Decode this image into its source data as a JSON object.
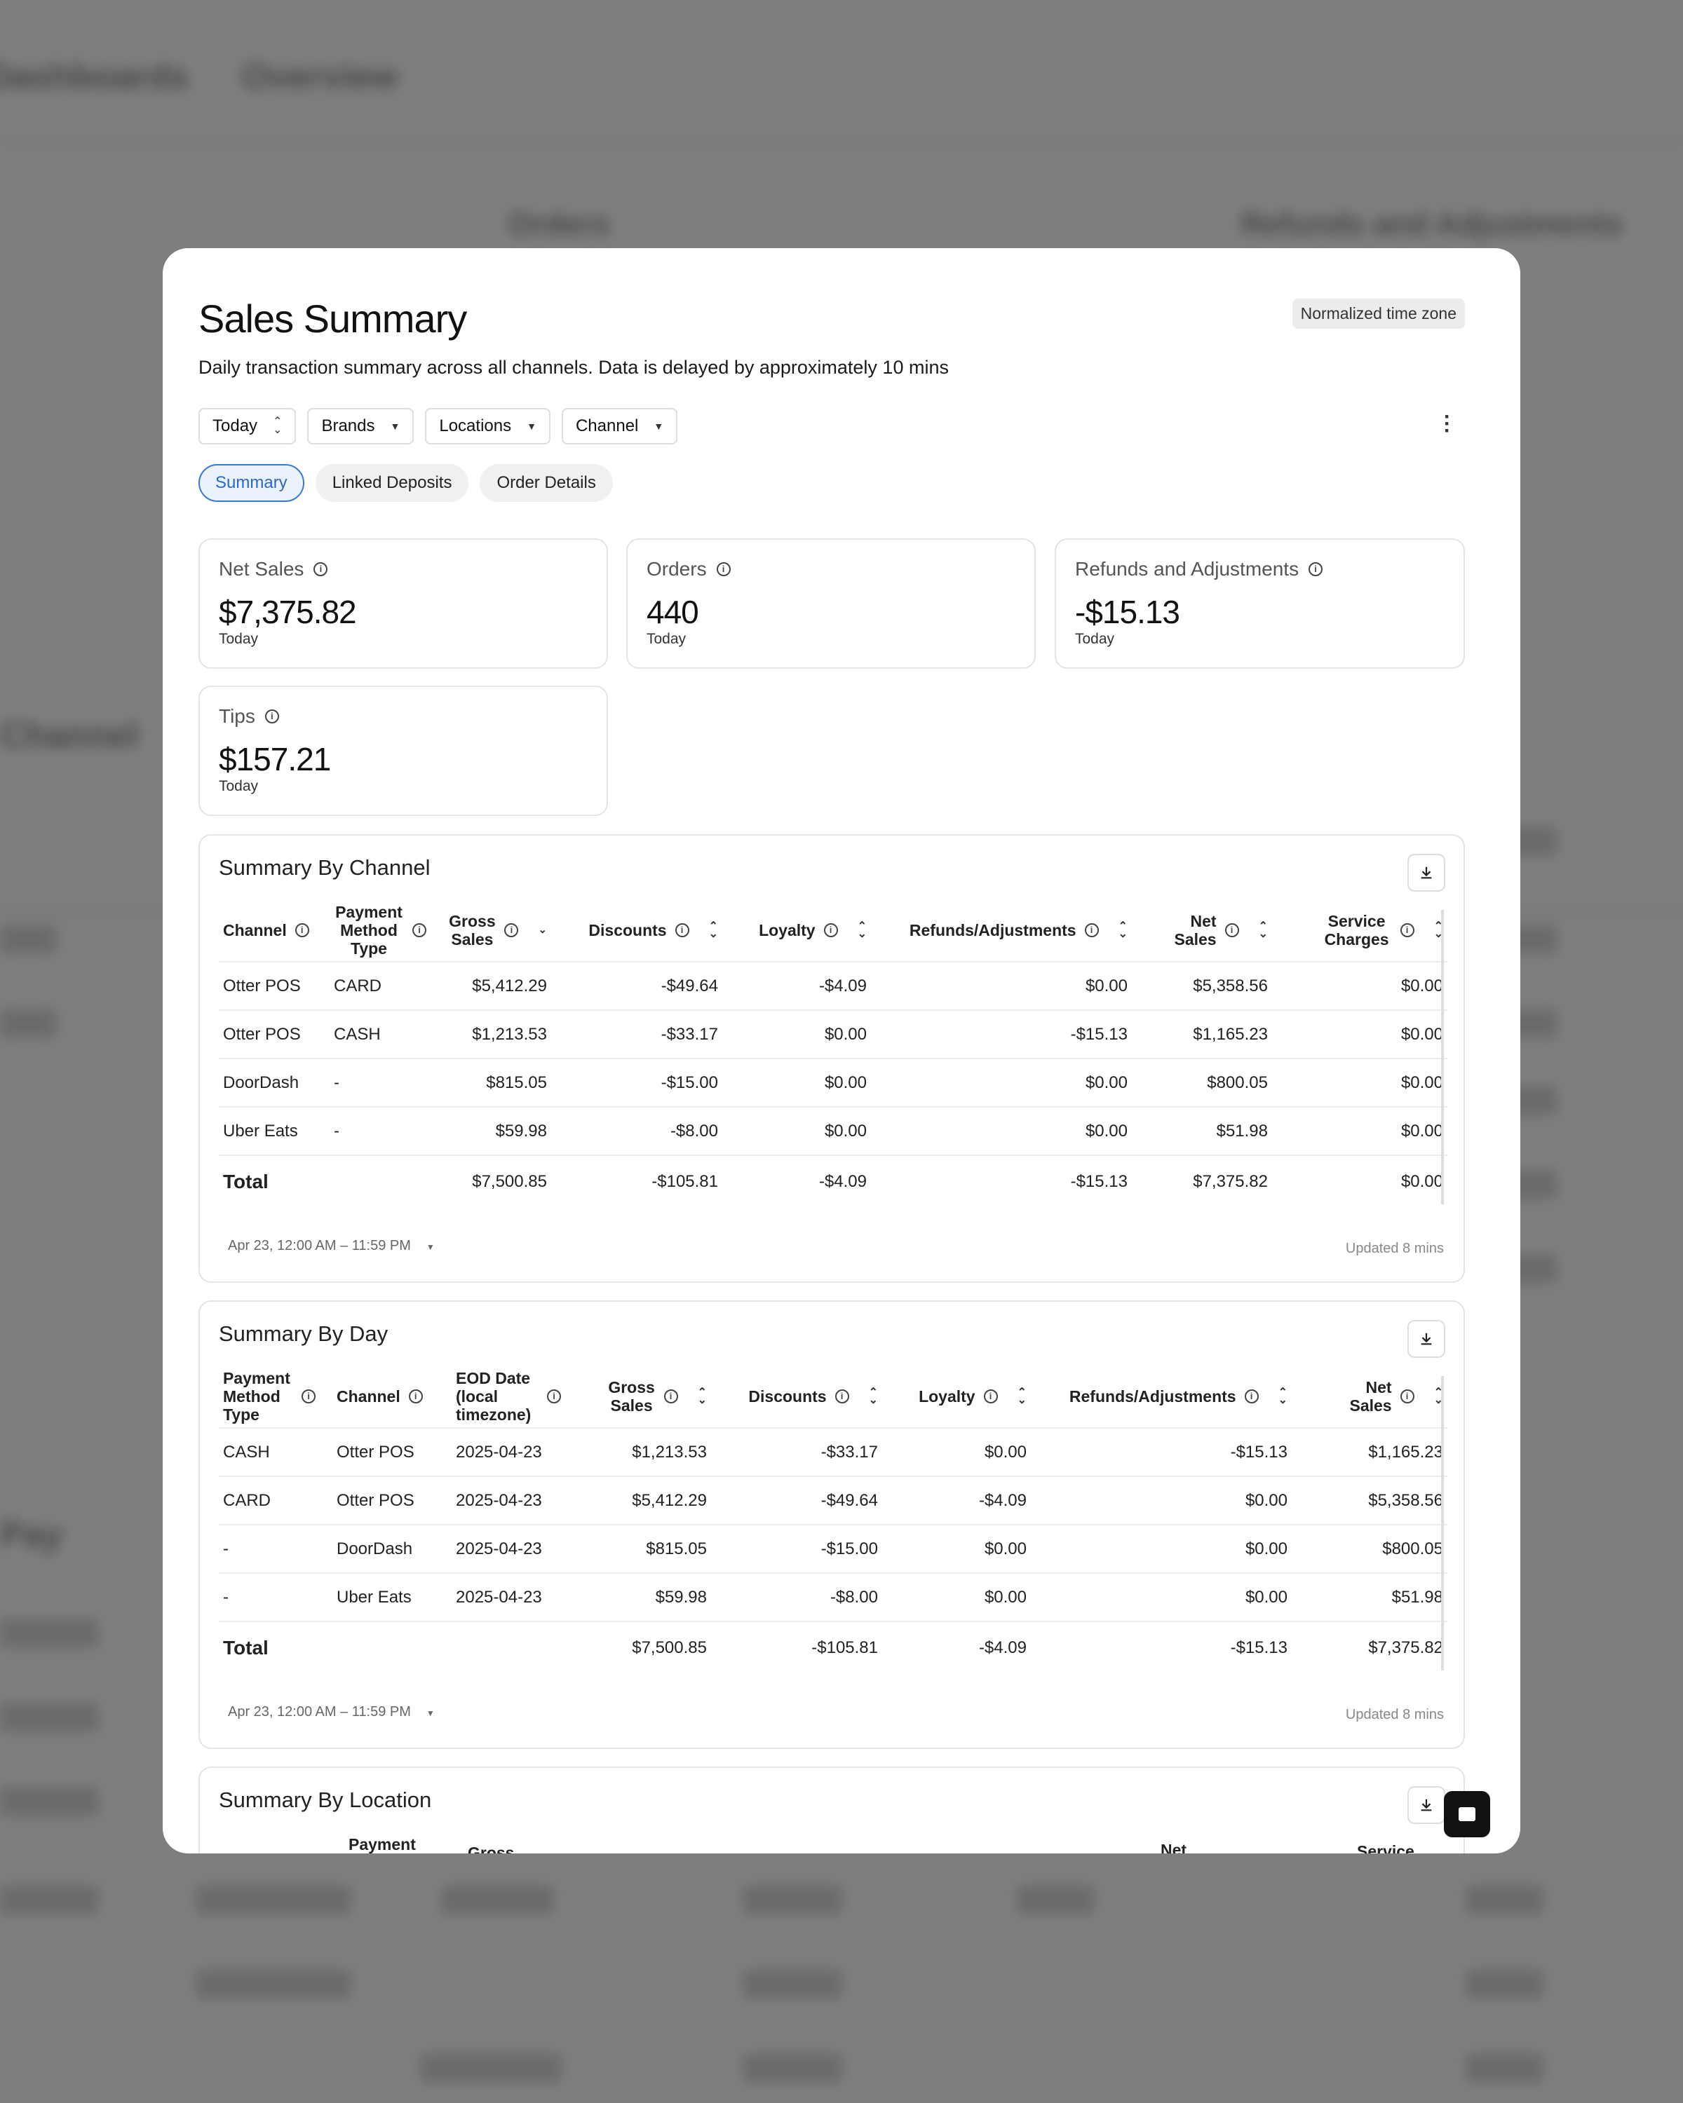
{
  "background": {
    "tabs": [
      "Dashboards",
      "Overview"
    ],
    "headers": [
      "Orders",
      "Refunds and Adjustments"
    ],
    "section_label": "Channel",
    "section_label2": "Pay"
  },
  "modal": {
    "title": "Sales Summary",
    "subtitle": "Daily transaction summary across all channels. Data is delayed by approximately 10 mins",
    "timezone_badge": "Normalized time zone",
    "filters": {
      "date": "Today",
      "brands": "Brands",
      "locations": "Locations",
      "channel": "Channel"
    },
    "tabs": [
      "Summary",
      "Linked Deposits",
      "Order Details"
    ],
    "kpis": [
      {
        "label": "Net Sales",
        "value": "$7,375.82",
        "period": "Today"
      },
      {
        "label": "Orders",
        "value": "440",
        "period": "Today"
      },
      {
        "label": "Refunds and Adjustments",
        "value": "-$15.13",
        "period": "Today"
      },
      {
        "label": "Tips",
        "value": "$157.21",
        "period": "Today"
      }
    ],
    "by_channel": {
      "title": "Summary By Channel",
      "headers": {
        "channel": "Channel",
        "payment": "Payment Method Type",
        "gross": "Gross Sales",
        "discounts": "Discounts",
        "loyalty": "Loyalty",
        "refunds": "Refunds/Adjustments",
        "net": "Net Sales",
        "service": "Service Charges"
      },
      "rows": [
        [
          "Otter POS",
          "CARD",
          "$5,412.29",
          "-$49.64",
          "-$4.09",
          "$0.00",
          "$5,358.56",
          "$0.00"
        ],
        [
          "Otter POS",
          "CASH",
          "$1,213.53",
          "-$33.17",
          "$0.00",
          "-$15.13",
          "$1,165.23",
          "$0.00"
        ],
        [
          "DoorDash",
          "-",
          "$815.05",
          "-$15.00",
          "$0.00",
          "$0.00",
          "$800.05",
          "$0.00"
        ],
        [
          "Uber Eats",
          "-",
          "$59.98",
          "-$8.00",
          "$0.00",
          "$0.00",
          "$51.98",
          "$0.00"
        ]
      ],
      "total": [
        "Total",
        "",
        "$7,500.85",
        "-$105.81",
        "-$4.09",
        "-$15.13",
        "$7,375.82",
        "$0.00"
      ],
      "date_range": "Apr 23, 12:00 AM – 11:59 PM",
      "updated": "Updated 8 mins"
    },
    "by_day": {
      "title": "Summary By Day",
      "headers": {
        "payment": "Payment Method Type",
        "channel": "Channel",
        "eod": "EOD Date (local timezone)",
        "gross": "Gross Sales",
        "discounts": "Discounts",
        "loyalty": "Loyalty",
        "refunds": "Refunds/Adjustments",
        "net": "Net Sales"
      },
      "rows": [
        [
          "CASH",
          "Otter POS",
          "2025-04-23",
          "$1,213.53",
          "-$33.17",
          "$0.00",
          "-$15.13",
          "$1,165.23"
        ],
        [
          "CARD",
          "Otter POS",
          "2025-04-23",
          "$5,412.29",
          "-$49.64",
          "-$4.09",
          "$0.00",
          "$5,358.56"
        ],
        [
          "-",
          "DoorDash",
          "2025-04-23",
          "$815.05",
          "-$15.00",
          "$0.00",
          "$0.00",
          "$800.05"
        ],
        [
          "-",
          "Uber Eats",
          "2025-04-23",
          "$59.98",
          "-$8.00",
          "$0.00",
          "$0.00",
          "$51.98"
        ]
      ],
      "total": [
        "Total",
        "",
        "",
        "$7,500.85",
        "-$105.81",
        "-$4.09",
        "-$15.13",
        "$7,375.82"
      ],
      "date_range": "Apr 23, 12:00 AM – 11:59 PM",
      "updated": "Updated 8 mins"
    },
    "by_location": {
      "title": "Summary By Location",
      "headers": {
        "payment": "Payment",
        "gross": "Gross",
        "net": "Net",
        "service": "Service"
      }
    }
  }
}
